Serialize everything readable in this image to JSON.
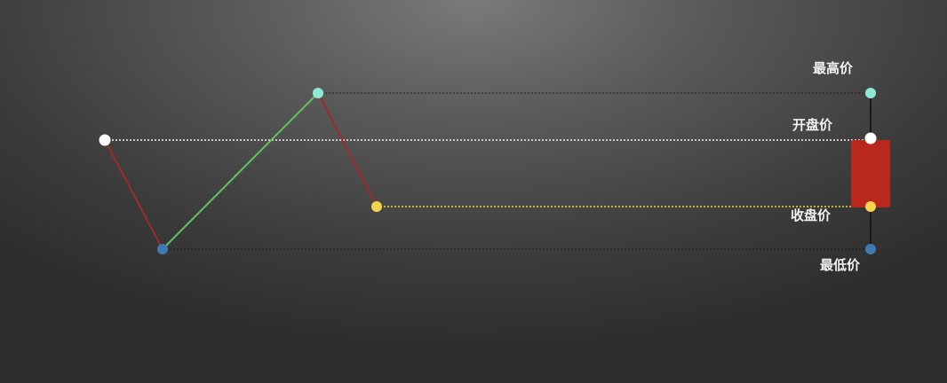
{
  "diagram": {
    "type": "candlestick-explainer",
    "title": "",
    "labels": {
      "high": "最高价",
      "open": "开盘价",
      "close": "收盘价",
      "low": "最低价"
    },
    "price_path": [
      "open",
      "low",
      "high",
      "close"
    ],
    "candle": {
      "direction": "bearish",
      "body_color": "#b8281c"
    },
    "colors": {
      "open": "#ffffff",
      "low": "#3f79ad",
      "high": "#8ee8d6",
      "close": "#f5d34a",
      "down_segment": "#a02a26",
      "up_segment": "#5fc35f"
    }
  }
}
